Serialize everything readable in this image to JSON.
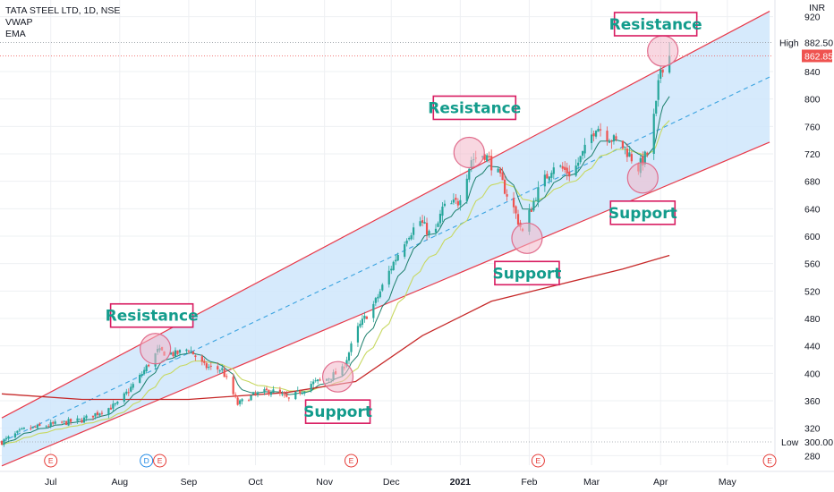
{
  "legend": {
    "title": "TATA STEEL LTD, 1D, NSE",
    "indicator1": "VWAP",
    "indicator2": "EMA"
  },
  "currency": "INR",
  "high_label": "High",
  "high_value": "882.50",
  "low_label": "Low",
  "low_value": "300.00",
  "last_price": "862.85",
  "colors": {
    "up": "#26a69a",
    "down": "#ef5350",
    "channel_fill": "#cfe6fb",
    "channel_border": "#e8394a",
    "midline": "#3aa3e0",
    "vwap": "#1b7f6b",
    "ema_short": "#c7d860",
    "ema_long": "#c62828",
    "annotation_text": "#139c8c",
    "annotation_border": "#d81b60",
    "circle_fill": "#f3b7c8",
    "circle_stroke": "#e06c8c"
  },
  "events": [
    {
      "label": "E",
      "date": "2020-07-01",
      "color": "#e53935"
    },
    {
      "label": "D",
      "date": "2020-08-13",
      "color": "#1e88e5"
    },
    {
      "label": "E",
      "date": "2020-08-19",
      "color": "#e53935"
    },
    {
      "label": "E",
      "date": "2020-11-13",
      "color": "#e53935"
    },
    {
      "label": "E",
      "date": "2021-02-05",
      "color": "#e53935"
    },
    {
      "label": "E",
      "date": "2021-05-20",
      "color": "#e53935"
    }
  ],
  "annotations": [
    {
      "text": "Resistance",
      "date": "2020-08-17",
      "price": 436
    },
    {
      "text": "Support",
      "date": "2020-11-07",
      "price": 395
    },
    {
      "text": "Resistance",
      "date": "2021-01-05",
      "price": 722
    },
    {
      "text": "Support",
      "date": "2021-01-31",
      "price": 597
    },
    {
      "text": "Support",
      "date": "2021-03-24",
      "price": 685
    },
    {
      "text": "Resistance",
      "date": "2021-04-02",
      "price": 870
    }
  ],
  "chart_data": {
    "type": "candlestick",
    "title": "TATA STEEL LTD, 1D, NSE",
    "y_range": [
      270,
      930
    ],
    "x_range": [
      "2020-06-09",
      "2021-05-24"
    ],
    "y_ticks": [
      280,
      320,
      360,
      400,
      440,
      480,
      520,
      560,
      600,
      640,
      680,
      720,
      760,
      800,
      840,
      920
    ],
    "x_ticks": [
      {
        "label": "Jul",
        "date": "2020-07-01"
      },
      {
        "label": "Aug",
        "date": "2020-08-01"
      },
      {
        "label": "Sep",
        "date": "2020-09-01"
      },
      {
        "label": "Oct",
        "date": "2020-10-01"
      },
      {
        "label": "Nov",
        "date": "2020-11-01"
      },
      {
        "label": "Dec",
        "date": "2020-12-01"
      },
      {
        "label": "2021",
        "date": "2021-01-01",
        "bold": true
      },
      {
        "label": "Feb",
        "date": "2021-02-01"
      },
      {
        "label": "Mar",
        "date": "2021-03-01"
      },
      {
        "label": "Apr",
        "date": "2021-04-01"
      },
      {
        "label": "May",
        "date": "2021-05-01"
      }
    ],
    "price_path": [
      [
        "2020-06-09",
        300
      ],
      [
        "2020-06-19",
        318
      ],
      [
        "2020-07-01",
        325
      ],
      [
        "2020-07-15",
        332
      ],
      [
        "2020-07-31",
        355
      ],
      [
        "2020-08-10",
        395
      ],
      [
        "2020-08-18",
        432
      ],
      [
        "2020-08-26",
        428
      ],
      [
        "2020-09-01",
        436
      ],
      [
        "2020-09-08",
        410
      ],
      [
        "2020-09-16",
        405
      ],
      [
        "2020-09-23",
        355
      ],
      [
        "2020-09-30",
        368
      ],
      [
        "2020-10-08",
        375
      ],
      [
        "2020-10-16",
        362
      ],
      [
        "2020-10-26",
        385
      ],
      [
        "2020-11-02",
        392
      ],
      [
        "2020-11-09",
        405
      ],
      [
        "2020-11-16",
        465
      ],
      [
        "2020-11-24",
        505
      ],
      [
        "2020-12-01",
        555
      ],
      [
        "2020-12-08",
        600
      ],
      [
        "2020-12-14",
        622
      ],
      [
        "2020-12-20",
        595
      ],
      [
        "2020-12-24",
        640
      ],
      [
        "2020-12-31",
        650
      ],
      [
        "2021-01-06",
        712
      ],
      [
        "2021-01-12",
        720
      ],
      [
        "2021-01-18",
        690
      ],
      [
        "2021-01-25",
        640
      ],
      [
        "2021-01-29",
        605
      ],
      [
        "2021-02-04",
        660
      ],
      [
        "2021-02-12",
        705
      ],
      [
        "2021-02-20",
        690
      ],
      [
        "2021-02-26",
        725
      ],
      [
        "2021-03-03",
        762
      ],
      [
        "2021-03-10",
        742
      ],
      [
        "2021-03-16",
        728
      ],
      [
        "2021-03-22",
        700
      ],
      [
        "2021-03-26",
        720
      ],
      [
        "2021-03-30",
        790
      ],
      [
        "2021-04-01",
        845
      ],
      [
        "2021-04-05",
        862.85
      ]
    ],
    "channel": {
      "upper": [
        [
          "2020-06-09",
          335
        ],
        [
          "2021-05-20",
          928
        ]
      ],
      "lower": [
        [
          "2020-06-09",
          265
        ],
        [
          "2021-05-20",
          737
        ]
      ],
      "mid": [
        [
          "2020-06-09",
          300
        ],
        [
          "2021-05-20",
          832
        ]
      ]
    },
    "ema_long": [
      [
        "2020-06-09",
        370
      ],
      [
        "2020-07-15",
        362
      ],
      [
        "2020-09-01",
        362
      ],
      [
        "2020-10-15",
        372
      ],
      [
        "2020-11-15",
        388
      ],
      [
        "2020-12-15",
        455
      ],
      [
        "2021-01-15",
        505
      ],
      [
        "2021-02-15",
        530
      ],
      [
        "2021-03-15",
        552
      ],
      [
        "2021-04-05",
        572
      ]
    ],
    "high": 882.5,
    "low": 300.0,
    "last": 862.85
  }
}
